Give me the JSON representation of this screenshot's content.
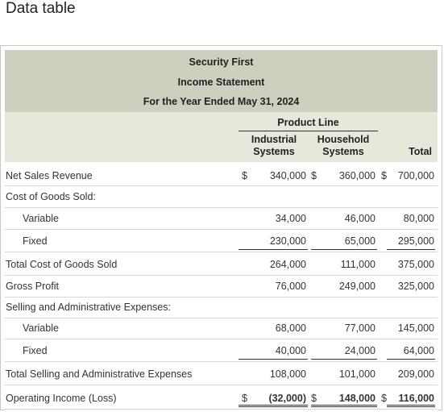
{
  "window": {
    "title": "Data table"
  },
  "statement": {
    "company": "Security First",
    "name": "Income Statement",
    "period": "For the Year Ended May 31, 2024"
  },
  "columns": {
    "group_header": "Product Line",
    "industrial": [
      "Industrial",
      "Systems"
    ],
    "household": [
      "Household",
      "Systems"
    ],
    "total": "Total"
  },
  "rows": [
    {
      "label": "Net Sales Revenue",
      "indent": false,
      "ind_prefix": "$",
      "industrial": "340,000",
      "hh_prefix": "$",
      "household": "360,000",
      "tot_prefix": "$",
      "total": "700,000"
    },
    {
      "label": "Cost of Goods Sold:",
      "indent": false
    },
    {
      "label": "Variable",
      "indent": true,
      "industrial": "34,000",
      "household": "46,000",
      "total": "80,000"
    },
    {
      "label": "Fixed",
      "indent": true,
      "industrial": "230,000",
      "household": "65,000",
      "total": "295,000"
    },
    {
      "label": "Total Cost of Goods Sold",
      "indent": false,
      "industrial": "264,000",
      "household": "111,000",
      "total": "375,000"
    },
    {
      "label": "Gross Profit",
      "indent": false,
      "industrial": "76,000",
      "household": "249,000",
      "total": "325,000"
    },
    {
      "label": "Selling and Administrative Expenses:",
      "indent": false
    },
    {
      "label": "Variable",
      "indent": true,
      "industrial": "68,000",
      "household": "77,000",
      "total": "145,000"
    },
    {
      "label": "Fixed",
      "indent": true,
      "industrial": "40,000",
      "household": "24,000",
      "total": "64,000"
    },
    {
      "label": "Total Selling and Administrative Expenses",
      "indent": false,
      "industrial": "108,000",
      "household": "101,000",
      "total": "209,000"
    },
    {
      "label": "Operating Income (Loss)",
      "indent": false,
      "ind_prefix": "$",
      "industrial": "(32,000)",
      "hh_prefix": "$",
      "household": "148,000",
      "tot_prefix": "$",
      "total": "116,000"
    }
  ]
}
